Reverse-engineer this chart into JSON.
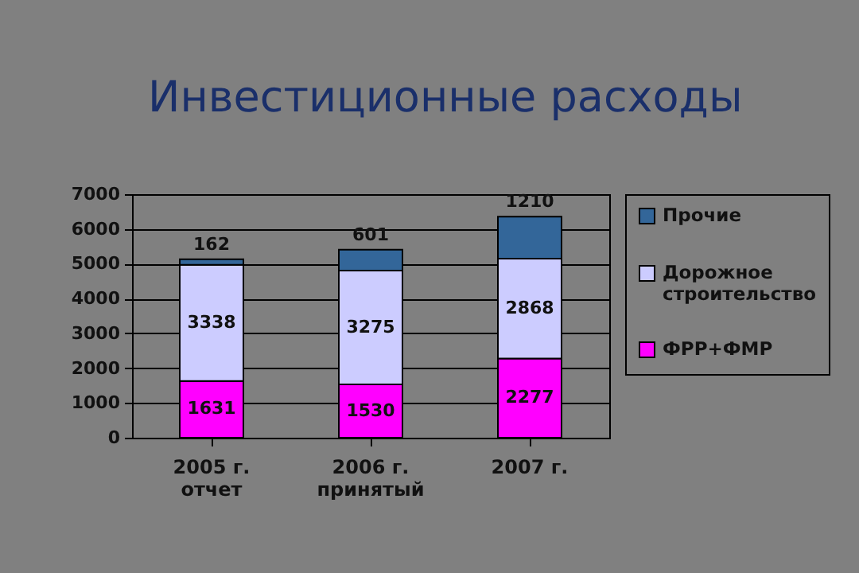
{
  "chart_data": {
    "type": "bar",
    "title": "Инвестиционные расходы",
    "stacked": true,
    "categories": [
      "2005 г.\nотчет",
      "2006 г.\nпринятый",
      "2007 г."
    ],
    "series": [
      {
        "name": "ФРР+ФМР",
        "color": "#ff00ff",
        "values": [
          1631,
          1530,
          2277
        ]
      },
      {
        "name": "Дорожное строительство",
        "color": "#ccccff",
        "values": [
          3338,
          3275,
          2868
        ]
      },
      {
        "name": "Прочие",
        "color": "#336699",
        "values": [
          162,
          601,
          1210
        ]
      }
    ],
    "ylim": [
      0,
      7000
    ],
    "yticks": [
      0,
      1000,
      2000,
      3000,
      4000,
      5000,
      6000,
      7000
    ],
    "grid": "y",
    "legend": "right",
    "data_labels": true
  }
}
